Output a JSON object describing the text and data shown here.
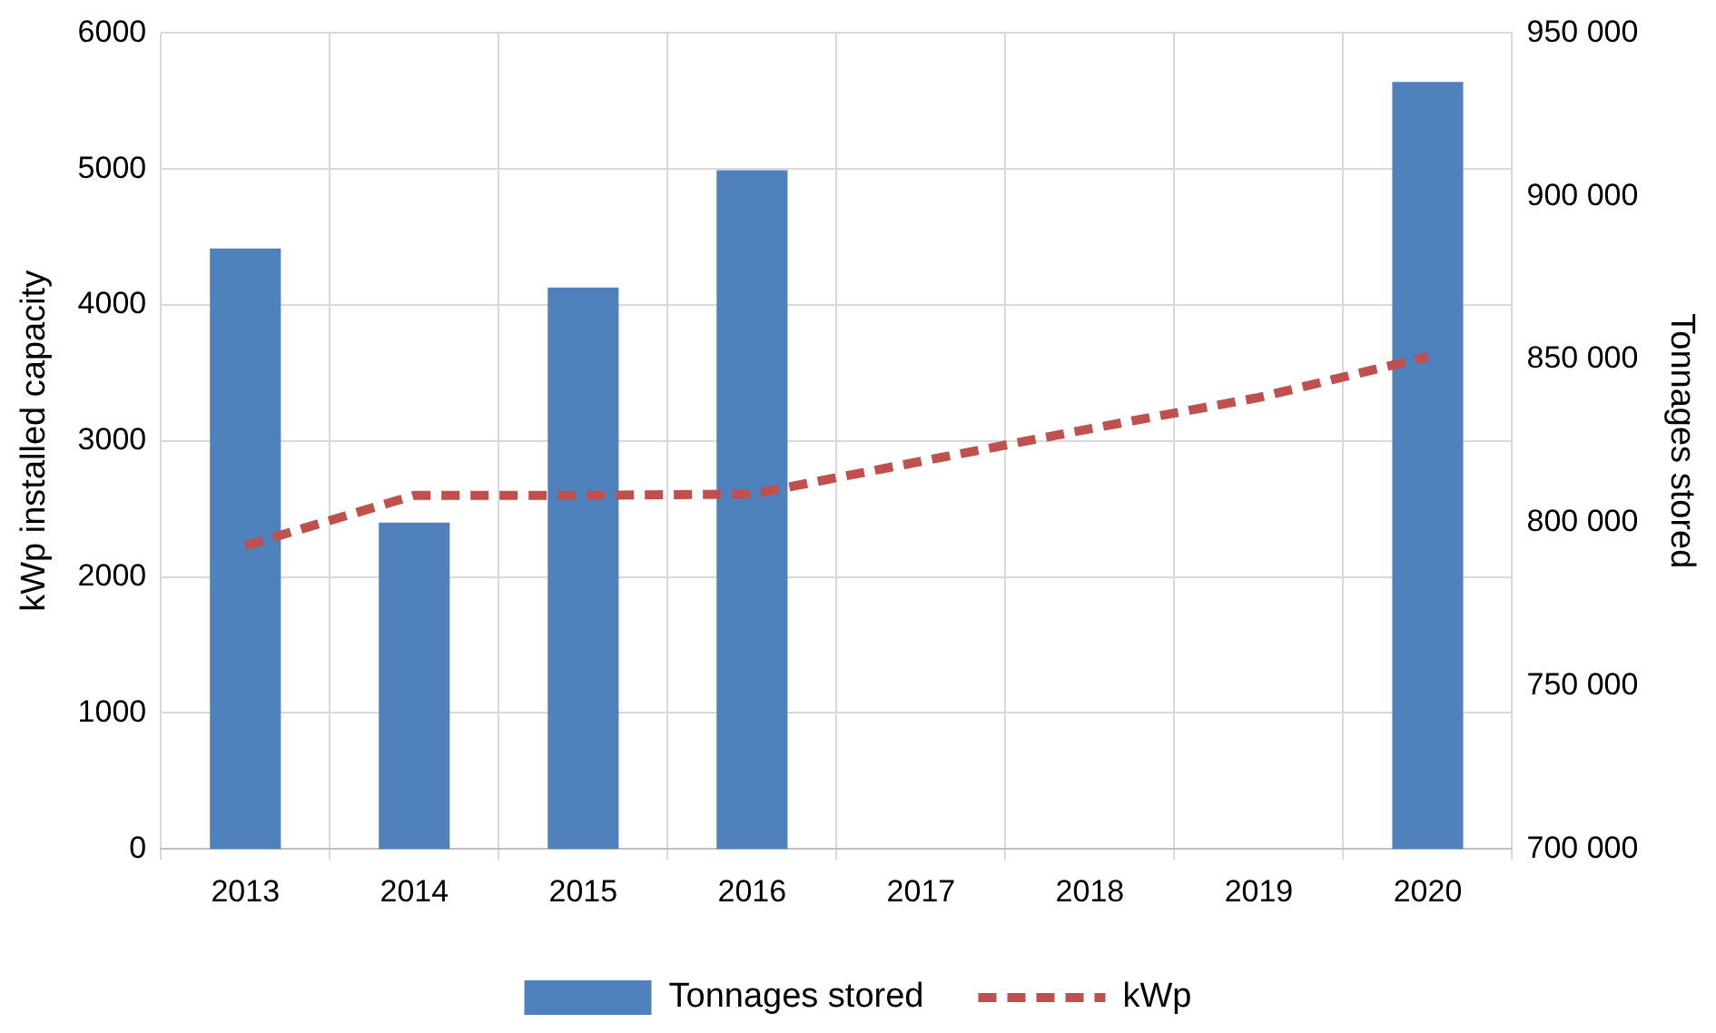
{
  "chart_data": {
    "type": "bar",
    "categories": [
      "2013",
      "2014",
      "2015",
      "2016",
      "2017",
      "2018",
      "2019",
      "2020"
    ],
    "series": [
      {
        "name": "Tonnages stored",
        "axis": "y2",
        "color": "#4f81bd",
        "values": [
          884000,
          800000,
          872000,
          908000,
          null,
          null,
          null,
          935000
        ]
      },
      {
        "name": "kWp",
        "type": "line",
        "color": "#c0504d",
        "line_style": "dashed",
        "marker": "none",
        "values": [
          2230,
          2600,
          2600,
          2610,
          2850,
          3090,
          3320,
          3620
        ]
      }
    ],
    "ylabel": "kWp installed capacity",
    "y2label": "Tonnages stored",
    "ylim": [
      0,
      6000
    ],
    "yticks": [
      0,
      1000,
      2000,
      3000,
      4000,
      5000,
      6000
    ],
    "y2lim": [
      700000,
      950000
    ],
    "y2ticks": [
      {
        "value": 700000,
        "label": "700 000"
      },
      {
        "value": 750000,
        "label": "750 000"
      },
      {
        "value": 800000,
        "label": "800 000"
      },
      {
        "value": 850000,
        "label": "850 000"
      },
      {
        "value": 900000,
        "label": "900 000"
      },
      {
        "value": 950000,
        "label": "950 000"
      }
    ],
    "grid": true,
    "legend": "bottom"
  }
}
